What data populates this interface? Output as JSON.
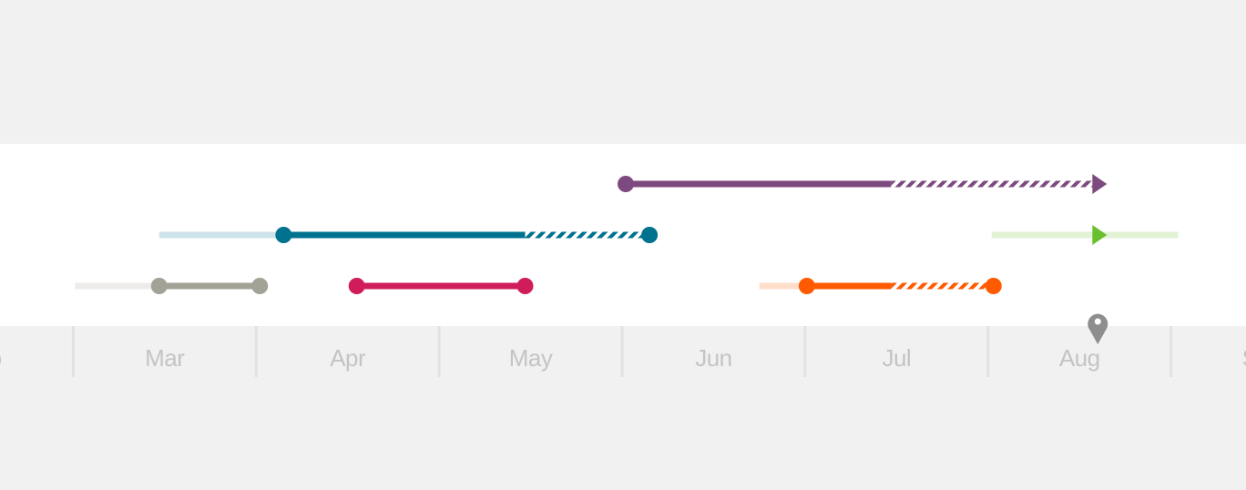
{
  "chart_data": {
    "type": "timeline",
    "xlim": [
      2.6,
      9.41
    ],
    "xticks": [
      3,
      4,
      5,
      6,
      7,
      8,
      9
    ],
    "month_labels": [
      {
        "value": 2.5,
        "label": "Feb"
      },
      {
        "value": 3.5,
        "label": "Mar"
      },
      {
        "value": 4.5,
        "label": "Apr"
      },
      {
        "value": 5.5,
        "label": "May"
      },
      {
        "value": 6.5,
        "label": "Jun"
      },
      {
        "value": 7.5,
        "label": "Jul"
      },
      {
        "value": 8.5,
        "label": "Aug"
      },
      {
        "value": 9.5,
        "label": "Sep"
      }
    ],
    "today": 8.6,
    "rows": [
      [
        {
          "color": "#7d4a7f",
          "start": 6.02,
          "solid_end": 7.47,
          "end": 8.65,
          "end_marker": "arrow"
        }
      ],
      [
        {
          "color": "#00718f",
          "range": [
            3.47,
            4.15
          ],
          "start": 4.15,
          "solid_end": 5.47,
          "end": 6.15,
          "end_marker": "dot"
        },
        {
          "color": "#6abf2e",
          "range": [
            8.02,
            9.04
          ],
          "end": 8.65,
          "end_marker": "arrow"
        }
      ],
      [
        {
          "color": "#a3a296",
          "range": [
            3.01,
            3.47
          ],
          "start": 3.47,
          "solid_end": 4.02,
          "end": 4.02,
          "end_marker": "dot"
        },
        {
          "color": "#d01c5b",
          "start": 4.55,
          "solid_end": 5.47,
          "end": 5.47,
          "end_marker": "dot"
        },
        {
          "color": "#ff5a00",
          "range": [
            6.75,
            7.01
          ],
          "start": 7.01,
          "solid_end": 7.47,
          "end": 8.03,
          "end_marker": "dot"
        }
      ]
    ]
  }
}
